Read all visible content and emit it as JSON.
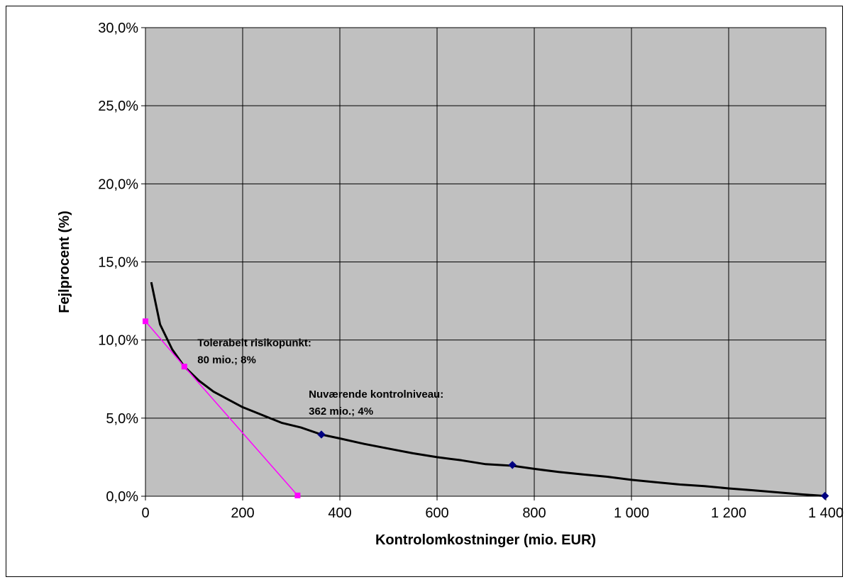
{
  "chart_data": {
    "type": "line",
    "xlabel": "Kontrolomkostninger (mio. EUR)",
    "ylabel": "Fejlprocent (%)",
    "xlim": [
      0,
      1400
    ],
    "ylim": [
      0,
      30
    ],
    "x_ticks": [
      0,
      200,
      400,
      600,
      800,
      1000,
      1200,
      1400
    ],
    "x_tick_labels": [
      "0",
      "200",
      "400",
      "600",
      "800",
      "1 000",
      "1 200",
      "1 400"
    ],
    "y_ticks": [
      0,
      5,
      10,
      15,
      20,
      25,
      30
    ],
    "y_tick_labels": [
      "0,0%",
      "5,0%",
      "10,0%",
      "15,0%",
      "20,0%",
      "25,0%",
      "30,0%"
    ],
    "grid": true,
    "plot_background": "#c0c0c0",
    "series": [
      {
        "color": "#000000",
        "marker": "none",
        "points": [
          [
            12,
            13.7
          ],
          [
            30,
            11.0
          ],
          [
            55,
            9.4
          ],
          [
            80,
            8.3
          ],
          [
            110,
            7.4
          ],
          [
            140,
            6.7
          ],
          [
            170,
            6.2
          ],
          [
            200,
            5.7
          ],
          [
            240,
            5.2
          ],
          [
            280,
            4.7
          ],
          [
            320,
            4.4
          ],
          [
            362,
            3.95
          ],
          [
            400,
            3.7
          ],
          [
            450,
            3.35
          ],
          [
            500,
            3.05
          ],
          [
            550,
            2.75
          ],
          [
            600,
            2.5
          ],
          [
            650,
            2.3
          ],
          [
            700,
            2.05
          ],
          [
            755,
            1.95
          ],
          [
            800,
            1.75
          ],
          [
            850,
            1.55
          ],
          [
            900,
            1.4
          ],
          [
            950,
            1.25
          ],
          [
            1000,
            1.05
          ],
          [
            1050,
            0.9
          ],
          [
            1100,
            0.75
          ],
          [
            1150,
            0.65
          ],
          [
            1200,
            0.5
          ],
          [
            1250,
            0.38
          ],
          [
            1300,
            0.25
          ],
          [
            1350,
            0.12
          ],
          [
            1398,
            0.02
          ]
        ]
      },
      {
        "color": "#000080",
        "marker": "diamond",
        "points": [
          [
            362,
            3.95
          ],
          [
            755,
            2.0
          ],
          [
            1398,
            0.02
          ]
        ]
      },
      {
        "color": "#ff00ff",
        "marker": "square",
        "points": [
          [
            0,
            11.2
          ],
          [
            80,
            8.3
          ],
          [
            313,
            0.05
          ]
        ]
      }
    ],
    "annotations": [
      {
        "lines": [
          "Tolerabelt risikopunkt:",
          "80 mio.; 8%"
        ],
        "x": 107,
        "y": 9.6
      },
      {
        "lines": [
          "Nuværende kontrolniveau:",
          "362 mio.; 4%"
        ],
        "x": 336,
        "y": 6.3
      }
    ]
  }
}
